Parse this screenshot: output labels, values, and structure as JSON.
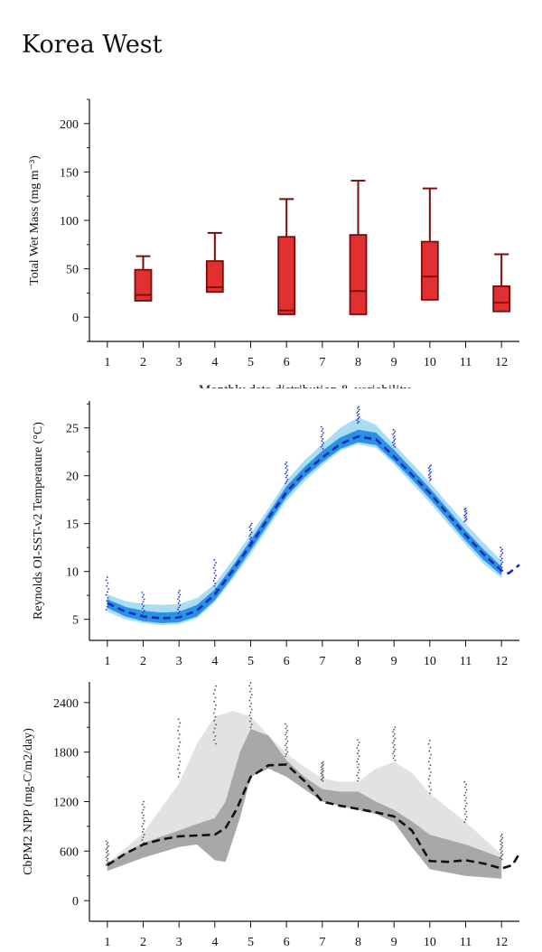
{
  "page": {
    "title": "Korea West"
  },
  "chart_data": [
    {
      "id": "wetmass",
      "type": "box",
      "ylabel": "Total Wet Mass (mg m⁻³)",
      "xlabel": "Monthly data distribution & variability",
      "xlim": [
        0.5,
        12.5
      ],
      "ylim": [
        -25,
        225
      ],
      "yticks": [
        0,
        50,
        100,
        150,
        200
      ],
      "xticks": [
        1,
        2,
        3,
        4,
        5,
        6,
        7,
        8,
        9,
        10,
        11,
        12
      ],
      "box_color": "#e03030",
      "edge_color": "#7a0c0c",
      "boxes": [
        {
          "month": 2,
          "whisker_low": 17,
          "q1": 17,
          "median": 23,
          "q3": 49,
          "whisker_high": 63
        },
        {
          "month": 4,
          "whisker_low": 26,
          "q1": 26,
          "median": 31,
          "q3": 58,
          "whisker_high": 87
        },
        {
          "month": 6,
          "whisker_low": 3,
          "q1": 3,
          "median": 7,
          "q3": 83,
          "whisker_high": 122
        },
        {
          "month": 8,
          "whisker_low": 3,
          "q1": 3,
          "median": 27,
          "q3": 85,
          "whisker_high": 141
        },
        {
          "month": 10,
          "whisker_low": 18,
          "q1": 18,
          "median": 42,
          "q3": 78,
          "whisker_high": 133
        },
        {
          "month": 12,
          "whisker_low": 6,
          "q1": 6,
          "median": 15,
          "q3": 32,
          "whisker_high": 65
        }
      ]
    },
    {
      "id": "sst",
      "type": "line",
      "ylabel": "Reynolds OI-SST-v2 Temperature (°C)",
      "xlim": [
        0.5,
        12.5
      ],
      "ylim": [
        2.8,
        27.8
      ],
      "yticks": [
        5,
        10,
        15,
        20,
        25
      ],
      "xticks": [
        1,
        2,
        3,
        4,
        5,
        6,
        7,
        8,
        9,
        10,
        11,
        12
      ],
      "mean_line_color": "#1a2ac0",
      "outer_band_color": "#aadcf4",
      "inner_band_color": "#2a92e0",
      "dot_color": "#2233cc",
      "mean": {
        "x": [
          1,
          1.5,
          2,
          2.5,
          3,
          3.5,
          4,
          4.5,
          5,
          5.5,
          6,
          6.5,
          7,
          7.5,
          8,
          8.5,
          9,
          9.5,
          10,
          10.5,
          11,
          11.5,
          12,
          12.2,
          12.5
        ],
        "y": [
          6.7,
          5.8,
          5.3,
          5.1,
          5.2,
          5.9,
          7.6,
          10.1,
          12.8,
          15.6,
          18.3,
          20.3,
          21.9,
          23.3,
          24.1,
          23.8,
          22.0,
          20.1,
          18.2,
          16.0,
          13.8,
          11.8,
          10.1,
          9.8,
          10.7
        ]
      },
      "outer_band": {
        "x": [
          1,
          1.5,
          2,
          2.5,
          3,
          3.5,
          4,
          4.5,
          5,
          5.5,
          6,
          6.5,
          7,
          7.5,
          8,
          8.5,
          9,
          9.5,
          10,
          10.5,
          11,
          11.5,
          12
        ],
        "upper": [
          7.6,
          6.9,
          6.6,
          6.5,
          6.6,
          7.2,
          8.7,
          11.2,
          13.9,
          16.6,
          19.5,
          21.6,
          23.3,
          25.0,
          26.1,
          25.3,
          23.3,
          21.3,
          19.3,
          17.1,
          15.0,
          13.0,
          11.1
        ],
        "lower": [
          5.8,
          5.0,
          4.6,
          4.4,
          4.5,
          5.1,
          6.8,
          9.2,
          11.8,
          14.6,
          17.4,
          19.4,
          21.1,
          22.6,
          23.3,
          22.9,
          21.2,
          19.2,
          17.2,
          15.0,
          12.8,
          10.8,
          9.3
        ]
      },
      "inner_band": {
        "x": [
          1,
          1.5,
          2,
          2.5,
          3,
          3.5,
          4,
          4.5,
          5,
          5.5,
          6,
          6.5,
          7,
          7.5,
          8,
          8.5,
          9,
          9.5,
          10,
          10.5,
          11,
          11.5,
          12
        ],
        "upper": [
          7.1,
          6.3,
          5.9,
          5.7,
          5.8,
          6.5,
          8.1,
          10.6,
          13.3,
          16.1,
          18.9,
          20.9,
          22.6,
          24.0,
          24.8,
          24.5,
          22.7,
          20.7,
          18.7,
          16.5,
          14.3,
          12.3,
          10.5
        ],
        "lower": [
          6.2,
          5.3,
          4.8,
          4.6,
          4.7,
          5.3,
          7.0,
          9.5,
          12.2,
          15.0,
          17.8,
          19.8,
          21.4,
          22.8,
          23.5,
          23.2,
          21.5,
          19.6,
          17.6,
          15.4,
          13.2,
          11.2,
          9.6
        ]
      },
      "dots": [
        {
          "month": 1,
          "low": 6.0,
          "high": 9.4
        },
        {
          "month": 2,
          "low": 5.2,
          "high": 7.8
        },
        {
          "month": 3,
          "low": 5.6,
          "high": 8.0
        },
        {
          "month": 4,
          "low": 8.2,
          "high": 11.2
        },
        {
          "month": 5,
          "low": 13.0,
          "high": 15.0
        },
        {
          "month": 6,
          "low": 19.2,
          "high": 21.4
        },
        {
          "month": 7,
          "low": 22.8,
          "high": 25.1
        },
        {
          "month": 8,
          "low": 25.5,
          "high": 27.2
        },
        {
          "month": 9,
          "low": 23.0,
          "high": 24.8
        },
        {
          "month": 10,
          "low": 19.5,
          "high": 21.1
        },
        {
          "month": 11,
          "low": 15.2,
          "high": 16.6
        },
        {
          "month": 12,
          "low": 10.4,
          "high": 12.5
        }
      ]
    },
    {
      "id": "npp",
      "type": "area",
      "ylabel": "CbPM2 NPP (mg-C/m2/day)",
      "xlim": [
        0.5,
        12.5
      ],
      "ylim": [
        -250,
        2650
      ],
      "yticks": [
        0,
        600,
        1200,
        1800,
        2400
      ],
      "xticks": [
        1,
        2,
        3,
        4,
        5,
        6,
        7,
        8,
        9,
        10,
        11,
        12
      ],
      "light_band_color": "#e2e2e2",
      "dark_band_color": "#a8a8a8",
      "mean_line_color": "#111111",
      "dot_color": "#555555",
      "light_band": {
        "x": [
          1,
          2,
          3,
          3.5,
          4,
          4.5,
          5,
          5.5,
          6,
          6.5,
          7,
          7.5,
          8,
          8.5,
          9,
          9.5,
          10,
          11,
          12
        ],
        "upper": [
          450,
          820,
          1420,
          1900,
          2230,
          2300,
          2230,
          2000,
          1780,
          1620,
          1480,
          1440,
          1440,
          1600,
          1680,
          1550,
          1300,
          950,
          560
        ],
        "lower": [
          380,
          560,
          760,
          800,
          500,
          900,
          1500,
          1640,
          1600,
          1400,
          1250,
          1200,
          1150,
          1100,
          1050,
          800,
          400,
          300,
          260
        ]
      },
      "dark_band": {
        "x": [
          1,
          2,
          3,
          3.5,
          4,
          4.3,
          4.7,
          5,
          5.5,
          6,
          6.5,
          7,
          7.5,
          8,
          8.5,
          9,
          9.5,
          10,
          11,
          12
        ],
        "upper": [
          450,
          700,
          850,
          930,
          1000,
          1200,
          1800,
          2080,
          2000,
          1700,
          1500,
          1350,
          1320,
          1320,
          1200,
          1100,
          960,
          800,
          680,
          520
        ],
        "lower": [
          360,
          520,
          650,
          680,
          490,
          470,
          1000,
          1500,
          1600,
          1500,
          1350,
          1200,
          1150,
          1100,
          1050,
          950,
          650,
          380,
          300,
          270
        ]
      },
      "mean": {
        "x": [
          1,
          1.5,
          2,
          2.5,
          3,
          3.5,
          4,
          4.3,
          4.6,
          5,
          5.5,
          6,
          6.5,
          7,
          7.5,
          8,
          8.5,
          9,
          9.5,
          10,
          10.5,
          11,
          11.5,
          12,
          12.3,
          12.5
        ],
        "y": [
          430,
          570,
          680,
          740,
          780,
          790,
          800,
          880,
          1100,
          1500,
          1640,
          1650,
          1450,
          1200,
          1150,
          1110,
          1070,
          1020,
          850,
          480,
          470,
          490,
          450,
          390,
          430,
          570
        ]
      },
      "dots": [
        {
          "month": 1,
          "low": 430,
          "high": 720
        },
        {
          "month": 2,
          "low": 700,
          "high": 1200
        },
        {
          "month": 3,
          "low": 1500,
          "high": 2200
        },
        {
          "month": 4,
          "low": 1900,
          "high": 2600
        },
        {
          "month": 5,
          "low": 2100,
          "high": 2640
        },
        {
          "month": 6,
          "low": 1750,
          "high": 2140
        },
        {
          "month": 7,
          "low": 1450,
          "high": 1680
        },
        {
          "month": 8,
          "low": 1450,
          "high": 1950
        },
        {
          "month": 9,
          "low": 1700,
          "high": 2100
        },
        {
          "month": 10,
          "low": 1300,
          "high": 1940
        },
        {
          "month": 11,
          "low": 950,
          "high": 1440
        },
        {
          "month": 12,
          "low": 500,
          "high": 800
        }
      ]
    }
  ]
}
